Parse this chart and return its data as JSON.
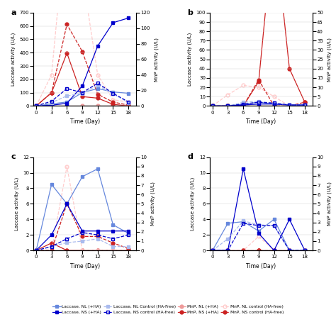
{
  "x": [
    0,
    3,
    6,
    9,
    12,
    15,
    18
  ],
  "panels": {
    "a": {
      "label": "a",
      "laccase_NL_HA": [
        0,
        15,
        30,
        100,
        130,
        105,
        95
      ],
      "laccase_NS_HA": [
        0,
        5,
        20,
        150,
        450,
        625,
        660
      ],
      "laccase_NL_ctrl": [
        0,
        25,
        75,
        95,
        155,
        90,
        25
      ],
      "laccase_NS_ctrl": [
        0,
        35,
        130,
        100,
        170,
        95,
        30
      ],
      "mnp_NL_HA": [
        0,
        0,
        0,
        0,
        0,
        0,
        0
      ],
      "mnp_NS_HA": [
        0,
        17,
        68,
        12,
        10,
        2,
        0
      ],
      "mnp_NL_ctrl": [
        0,
        40,
        250,
        170,
        40,
        8,
        5
      ],
      "mnp_NS_ctrl": [
        0,
        17,
        105,
        70,
        15,
        5,
        1
      ],
      "left_ylim": [
        0,
        700
      ],
      "left_yticks": [
        0,
        100,
        200,
        300,
        400,
        500,
        600,
        700
      ],
      "right_ylim": [
        0,
        120
      ],
      "right_yticks": [
        0,
        20,
        40,
        60,
        80,
        100,
        120
      ]
    },
    "b": {
      "label": "b",
      "laccase_NL_HA": [
        0,
        0,
        2,
        4,
        2,
        1,
        1
      ],
      "laccase_NS_HA": [
        0,
        0,
        1,
        2,
        2,
        1,
        1
      ],
      "laccase_NL_ctrl": [
        0,
        0,
        4,
        5,
        3,
        1,
        1
      ],
      "laccase_NS_ctrl": [
        0,
        0,
        2,
        4,
        3,
        1,
        1
      ],
      "mnp_NL_HA": [
        0,
        0,
        0,
        0,
        0,
        0,
        0
      ],
      "mnp_NS_HA": [
        0,
        0,
        0,
        13,
        98,
        20,
        2
      ],
      "mnp_NL_ctrl": [
        0,
        6,
        11,
        10,
        5,
        0,
        0
      ],
      "mnp_NS_ctrl": [
        0,
        0,
        0,
        14,
        0,
        0,
        2
      ],
      "left_ylim": [
        0,
        100
      ],
      "left_yticks": [
        0,
        10,
        20,
        30,
        40,
        50,
        60,
        70,
        80,
        90,
        100
      ],
      "right_ylim": [
        0,
        50
      ],
      "right_yticks": [
        0,
        5,
        10,
        15,
        20,
        25,
        30,
        35,
        40,
        45,
        50
      ]
    },
    "c": {
      "label": "c",
      "laccase_NL_HA": [
        0,
        8.5,
        6.0,
        9.5,
        10.5,
        3.3,
        2.2
      ],
      "laccase_NS_HA": [
        0,
        2.0,
        6.0,
        2.5,
        2.5,
        2.5,
        2.5
      ],
      "laccase_NL_ctrl": [
        0,
        0.5,
        1.0,
        1.2,
        1.5,
        0.5,
        0.5
      ],
      "laccase_NS_ctrl": [
        0,
        0.5,
        1.5,
        2.3,
        2.0,
        1.5,
        2.0
      ],
      "mnp_NL_HA": [
        0,
        0,
        0,
        0,
        0,
        0,
        0
      ],
      "mnp_NS_HA": [
        0,
        0.8,
        0,
        0,
        0,
        0,
        0
      ],
      "mnp_NL_ctrl": [
        0,
        0,
        9.0,
        0,
        0,
        0,
        0
      ],
      "mnp_NS_ctrl": [
        0,
        0,
        5.0,
        1.5,
        1.5,
        0.8,
        0.2
      ],
      "left_ylim": [
        0,
        12
      ],
      "left_yticks": [
        0,
        2,
        4,
        6,
        8,
        10,
        12
      ],
      "right_ylim": [
        0,
        10
      ],
      "right_yticks": [
        0,
        1,
        2,
        3,
        4,
        5,
        6,
        7,
        8,
        9,
        10
      ]
    },
    "d": {
      "label": "d",
      "laccase_NL_HA": [
        0,
        3.5,
        3.7,
        2.5,
        4.0,
        0,
        0
      ],
      "laccase_NS_HA": [
        0,
        0,
        10.5,
        2.2,
        0,
        4.0,
        0
      ],
      "laccase_NL_ctrl": [
        0,
        1.5,
        3.8,
        3.3,
        3.2,
        0,
        0
      ],
      "laccase_NS_ctrl": [
        0,
        0,
        3.5,
        3.2,
        3.2,
        0,
        0
      ],
      "mnp_NL_HA": [
        0,
        0,
        0,
        0,
        0,
        0,
        0
      ],
      "mnp_NS_HA": [
        0,
        0,
        0,
        0,
        0,
        0,
        0
      ],
      "mnp_NL_ctrl": [
        0,
        0,
        0,
        1.5,
        0,
        0,
        0
      ],
      "mnp_NS_ctrl": [
        0,
        0,
        0,
        0,
        0,
        0,
        0
      ],
      "left_ylim": [
        0,
        12
      ],
      "left_yticks": [
        0,
        2,
        4,
        6,
        8,
        10,
        12
      ],
      "right_ylim": [
        0,
        10
      ],
      "right_yticks": [
        0,
        1,
        2,
        3,
        4,
        5,
        6,
        7,
        8,
        9,
        10
      ]
    }
  },
  "c_blue_NL_HA": "#6688dd",
  "c_blue_NS_HA": "#0000cc",
  "c_blue_NL_ctrl": "#aabbee",
  "c_blue_NS_ctrl": "#0000cc",
  "c_red_NL_HA": "#ee9999",
  "c_red_NS_HA": "#cc2222",
  "c_red_NL_ctrl": "#ffcccc",
  "c_red_NS_ctrl": "#cc2222",
  "xlabel": "Time (Day)",
  "left_ylabel": "Laccase activity (U/L)",
  "right_ylabel": "MnP activity (U/L)",
  "legend": [
    {
      "label": "Laccase, NL (+HA)",
      "color": "#6688dd",
      "ls": "-",
      "marker": "s",
      "mfc": "#6688dd"
    },
    {
      "label": "Laccase, NS (+HA)",
      "color": "#0000cc",
      "ls": "-",
      "marker": "s",
      "mfc": "#0000cc"
    },
    {
      "label": "Laccase, NL Control (HA-Free)",
      "color": "#aabbee",
      "ls": "--",
      "marker": "s",
      "mfc": "#aabbee"
    },
    {
      "label": "Laccase, NS control (HA-free)",
      "color": "#0000cc",
      "ls": "--",
      "marker": "s",
      "mfc": "none"
    },
    {
      "label": "MnP, NL (+HA)",
      "color": "#ee9999",
      "ls": "-",
      "marker": "o",
      "mfc": "#ee9999"
    },
    {
      "label": "MnP, NS (+HA)",
      "color": "#cc2222",
      "ls": "-",
      "marker": "o",
      "mfc": "#cc2222"
    },
    {
      "label": "MnP, NL control (HA-free)",
      "color": "#ffcccc",
      "ls": "--",
      "marker": "o",
      "mfc": "none"
    },
    {
      "label": "MnP, NS control (HA-free)",
      "color": "#cc2222",
      "ls": "--",
      "marker": "o",
      "mfc": "#cc2222"
    }
  ]
}
